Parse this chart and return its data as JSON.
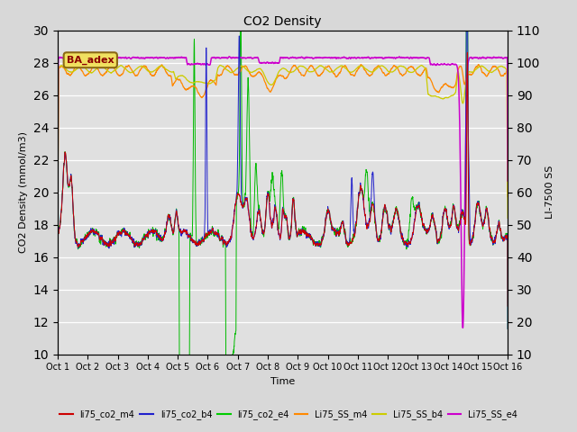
{
  "title": "CO2 Density",
  "xlabel": "Time",
  "ylabel_left": "CO2 Density (mmol/m3)",
  "ylabel_right": "LI-7500 SS",
  "ylim_left": [
    10,
    30
  ],
  "ylim_right": [
    10,
    110
  ],
  "yticks_left": [
    10,
    12,
    14,
    16,
    18,
    20,
    22,
    24,
    26,
    28,
    30
  ],
  "yticks_right": [
    10,
    20,
    30,
    40,
    50,
    60,
    70,
    80,
    90,
    100,
    110
  ],
  "xtick_labels": [
    "Oct 1",
    "Oct 2",
    "Oct 3",
    "Oct 4",
    "Oct 5",
    "Oct 6",
    "Oct 7",
    "Oct 8",
    "Oct 9",
    "Oct 10",
    "Oct 11",
    "Oct 12",
    "Oct 13",
    "Oct 14",
    "Oct 15",
    "Oct 16"
  ],
  "background_color": "#d8d8d8",
  "plot_bg": "#e0e0e0",
  "grid_color": "white",
  "annotation_text": "BA_adex",
  "annotation_color": "#8B0000",
  "annotation_bg": "#f0e060",
  "legend_entries": [
    "li75_co2_m4",
    "li75_co2_b4",
    "li75_co2_e4",
    "Li75_SS_m4",
    "Li75_SS_b4",
    "Li75_SS_e4"
  ],
  "legend_colors": [
    "#cc0000",
    "#2020cc",
    "#00cc00",
    "#ff8800",
    "#cccc00",
    "#cc00cc"
  ],
  "line_colors": {
    "co2_m4": "#cc0000",
    "co2_b4": "#2020cc",
    "co2_e4": "#00bb00",
    "SS_m4": "#ff8800",
    "SS_b4": "#cccc00",
    "SS_e4": "#cc00cc"
  },
  "n_points": 3000
}
